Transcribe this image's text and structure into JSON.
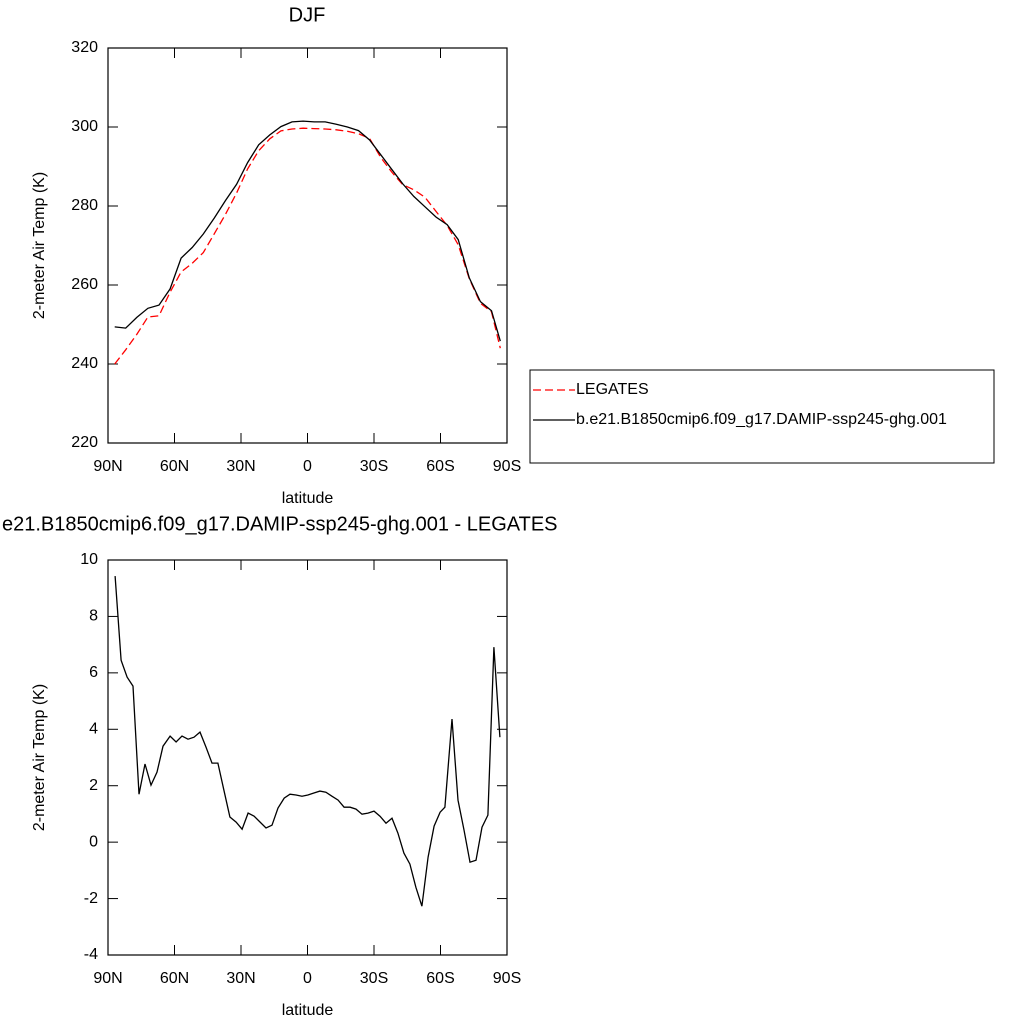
{
  "chart_data": [
    {
      "type": "line",
      "title": "DJF",
      "x_label": "latitude",
      "y_label": "2-meter Air Temp (K)",
      "x": [
        87,
        82,
        77,
        72,
        67,
        62,
        57,
        52,
        47,
        42,
        37,
        32,
        27,
        22,
        17,
        12,
        7,
        2,
        -3,
        -8,
        -13,
        -18,
        -23,
        -28,
        -33,
        -38,
        -43,
        -48,
        -53,
        -58,
        -63,
        -68,
        -73,
        -78,
        -83,
        -87
      ],
      "series": [
        {
          "name": "LEGATES",
          "color": "#ff0000",
          "dashed": true,
          "values": [
            240,
            243.6,
            247.5,
            251.9,
            252.2,
            258.2,
            263.3,
            265.5,
            268.2,
            273,
            277.9,
            283.3,
            289.4,
            294,
            297,
            299,
            299.5,
            299.7,
            299.6,
            299.5,
            299.3,
            298.9,
            298.3,
            297.1,
            292.3,
            288.6,
            285.4,
            284.1,
            282.2,
            278.6,
            275.1,
            270.2,
            261.6,
            255.4,
            253.2,
            244
          ]
        },
        {
          "name": "b.e21.B1850cmip6.f09_g17.DAMIP-ssp245-ghg.001",
          "color": "#000000",
          "dashed": false,
          "values": [
            249.4,
            249.1,
            251.8,
            254.1,
            254.9,
            259,
            266.8,
            269.5,
            272.9,
            277,
            281.4,
            285.5,
            291,
            295.5,
            298,
            300.1,
            301.3,
            301.5,
            301.3,
            301.3,
            300.7,
            300,
            299.1,
            296.7,
            293,
            289.3,
            285.6,
            282.4,
            279.8,
            277.2,
            275.3,
            271.5,
            261.8,
            255.8,
            253.5,
            245.8
          ]
        }
      ],
      "xlim": [
        90,
        -90
      ],
      "xticks": [
        {
          "value": 90,
          "label": "90N"
        },
        {
          "value": 60,
          "label": "60N"
        },
        {
          "value": 30,
          "label": "30N"
        },
        0,
        {
          "value": -30,
          "label": "30S"
        },
        {
          "value": -60,
          "label": "60S"
        },
        {
          "value": -90,
          "label": "90S"
        }
      ],
      "ylim": [
        220,
        320
      ],
      "yticks": [
        220,
        240,
        260,
        280,
        300,
        320
      ],
      "legend": "right"
    },
    {
      "type": "line",
      "title": "e21.B1850cmip6.f09_g17.DAMIP-ssp245-ghg.001 - LEGATES",
      "x_label": "latitude",
      "y_label": "2-meter Air Temp (K)",
      "x": [
        86.8,
        84.1,
        81.4,
        78.7,
        76,
        73.3,
        70.6,
        67.9,
        65.2,
        62,
        59.3,
        56.6,
        53.9,
        51.2,
        48.5,
        45.8,
        43.1,
        40.4,
        37.7,
        35,
        32.2,
        29.5,
        26.8,
        24.1,
        21.4,
        18.7,
        16,
        13.3,
        10.5,
        7.9,
        5.2,
        2.5,
        -0.2,
        -2.9,
        -5.6,
        -8.3,
        -11,
        -13.8,
        -16.5,
        -19.2,
        -21.9,
        -24.6,
        -27.3,
        -30,
        -32.7,
        -35.4,
        -38.1,
        -40.8,
        -43.5,
        -46.2,
        -48.9,
        -51.6,
        -54.4,
        -57.1,
        -59.8,
        -62,
        -65.2,
        -67.9,
        -70.6,
        -73.3,
        -76,
        -78.7,
        -81.4,
        -84.1,
        -86.8
      ],
      "values": [
        9.43,
        6.45,
        5.85,
        5.53,
        1.7,
        2.77,
        2.02,
        2.48,
        3.4,
        3.76,
        3.55,
        3.76,
        3.65,
        3.72,
        3.9,
        3.37,
        2.8,
        2.8,
        1.84,
        0.89,
        0.71,
        0.46,
        1.03,
        0.92,
        0.71,
        0.5,
        0.6,
        1.21,
        1.56,
        1.7,
        1.67,
        1.63,
        1.67,
        1.74,
        1.81,
        1.77,
        1.63,
        1.49,
        1.24,
        1.24,
        1.17,
        0.99,
        1.03,
        1.1,
        0.92,
        0.67,
        0.85,
        0.32,
        -0.39,
        -0.78,
        -1.6,
        -2.27,
        -0.53,
        0.57,
        1.06,
        1.24,
        4.36,
        1.49,
        0.43,
        -0.71,
        -0.64,
        0.53,
        0.96,
        6.91,
        3.72
      ],
      "color": "#000000",
      "xlim": [
        90,
        -90
      ],
      "xticks": [
        {
          "value": 90,
          "label": "90N"
        },
        {
          "value": 60,
          "label": "60N"
        },
        {
          "value": 30,
          "label": "30N"
        },
        0,
        {
          "value": -30,
          "label": "30S"
        },
        {
          "value": -60,
          "label": "60S"
        },
        {
          "value": -90,
          "label": "90S"
        }
      ],
      "ylim": [
        -4,
        10
      ],
      "yticks": [
        -4,
        -2,
        0,
        2,
        4,
        6,
        8,
        10
      ]
    }
  ]
}
